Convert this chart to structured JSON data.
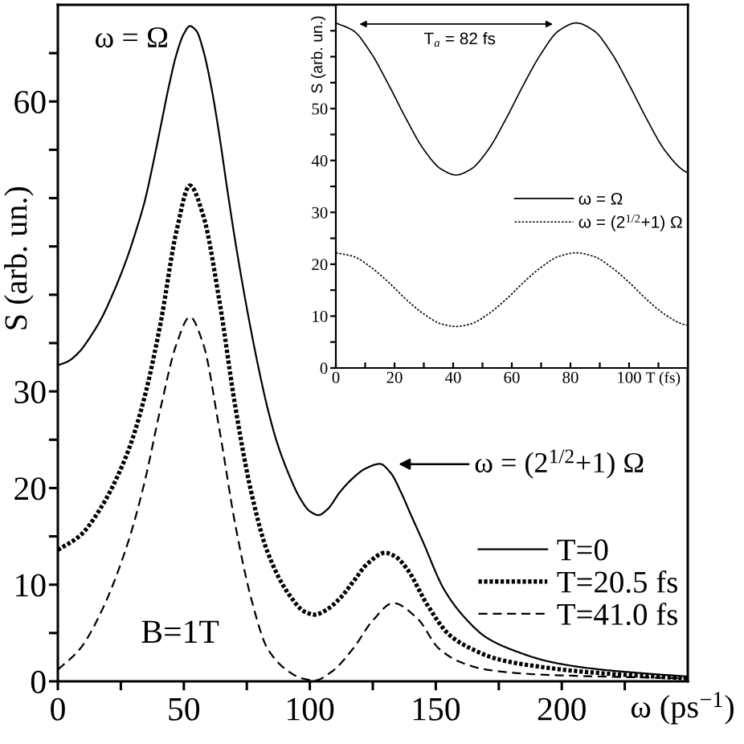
{
  "chart_data": [
    {
      "type": "line",
      "xlabel": "ω (ps$^{−1}$)",
      "ylabel": "S (arb. un.)",
      "xlim": [
        0,
        250
      ],
      "ylim": [
        0,
        70
      ],
      "xticks": [
        0,
        {
          "value": 25,
          "label": null
        },
        50,
        {
          "value": 75,
          "label": null
        },
        100,
        {
          "value": 125,
          "label": null
        },
        150,
        {
          "value": 175,
          "label": null
        },
        200,
        {
          "value": 225,
          "label": null
        }
      ],
      "yticks": [
        0,
        {
          "value": 5,
          "label": null
        },
        10,
        {
          "value": 15,
          "label": null
        },
        20,
        {
          "value": 25,
          "label": null
        },
        30,
        {
          "value": 35,
          "label": null
        },
        {
          "value": 40,
          "label": null
        },
        {
          "value": 45,
          "label": null
        },
        {
          "value": 50,
          "label": null
        },
        {
          "value": 55,
          "label": null
        },
        60,
        {
          "value": 65,
          "label": null
        }
      ],
      "legend": "bottom right",
      "annotations": [
        "ω = Ω",
        "ω = (2$^{1/2}$+1) Ω",
        "B=1T"
      ],
      "series": [
        {
          "name": "T=0",
          "color": "#000000",
          "line_style": "solid",
          "x": [
            0,
            4,
            8.9,
            12,
            17.4,
            22,
            25,
            28,
            31,
            34.4,
            37.5,
            40.8,
            44,
            47.1,
            50,
            52.4,
            55,
            57.7,
            60.9,
            64.1,
            67.3,
            70.5,
            73.7,
            76.9,
            80,
            83.2,
            87,
            91.7,
            96,
            100,
            103.4,
            107,
            112,
            117,
            122,
            127.8,
            132,
            136.3,
            140,
            144.8,
            153.3,
            161.8,
            170.3,
            180.9,
            195.7,
            212.7,
            234,
            250
          ],
          "values": [
            32.7,
            33.1,
            34.2,
            35.3,
            37.6,
            40.2,
            42.1,
            44.2,
            46.6,
            49.6,
            53.2,
            57.4,
            61.5,
            64.9,
            67.0,
            67.8,
            67.3,
            65.3,
            61.5,
            56.5,
            50.8,
            45.4,
            40.5,
            36.0,
            32.0,
            28.3,
            24.7,
            21.4,
            19.0,
            17.6,
            17.2,
            17.8,
            19.6,
            21.0,
            22.0,
            22.5,
            21.6,
            19.5,
            17.3,
            14.5,
            9.5,
            6.5,
            4.5,
            3.2,
            2.0,
            1.3,
            0.8,
            0.5
          ]
        },
        {
          "name": "T=20.5 fs",
          "color": "#000000",
          "line_style": "dotted",
          "x": [
            0,
            8.9,
            17.4,
            28,
            34.4,
            40.8,
            47.1,
            52.4,
            57.7,
            64.1,
            70.5,
            76.9,
            83.2,
            91.7,
            98,
            102,
            106,
            112,
            117.2,
            123,
            129.9,
            134,
            138.4,
            146.9,
            155.4,
            163.9,
            174.5,
            191.5,
            212.7,
            250
          ],
          "values": [
            13.6,
            15.1,
            18.1,
            23.9,
            29.4,
            37.1,
            46.6,
            51.3,
            48.2,
            39.4,
            28.3,
            19.4,
            13.4,
            9.0,
            7.2,
            6.9,
            7.3,
            8.6,
            10.3,
            12.2,
            13.3,
            12.9,
            11.7,
            7.8,
            4.8,
            3.4,
            2.3,
            1.5,
            0.9,
            0.3
          ]
        },
        {
          "name": "T=41.0 fs",
          "color": "#000000",
          "line_style": "dashed",
          "x": [
            0,
            8.9,
            17.4,
            28,
            34.4,
            40.8,
            47.1,
            52.4,
            57.7,
            64.1,
            70.5,
            76.9,
            83.2,
            91.7,
            97,
            102,
            108.7,
            117.2,
            125,
            133.1,
            142.7,
            151.2,
            159.7,
            170.3,
            191.5,
            250
          ],
          "values": [
            1.2,
            3.4,
            7.3,
            14.5,
            20.6,
            28.3,
            34.9,
            37.7,
            34.9,
            26.1,
            16.1,
            8.4,
            3.4,
            1.0,
            0.3,
            0.1,
            1.0,
            3.4,
            6.3,
            8.1,
            6.5,
            3.4,
            2.0,
            1.2,
            0.7,
            0.3
          ]
        }
      ]
    },
    {
      "type": "line",
      "xlabel": "T (fs)",
      "ylabel": "S (arb. un.)",
      "xlim": [
        0,
        120
      ],
      "ylim": [
        0,
        70
      ],
      "xticks": [
        0,
        {
          "value": 10,
          "label": null
        },
        20,
        {
          "value": 30,
          "label": null
        },
        40,
        {
          "value": 50,
          "label": null
        },
        60,
        {
          "value": 70,
          "label": null
        },
        80,
        {
          "value": 90,
          "label": null
        },
        100,
        {
          "value": 110,
          "label": null
        }
      ],
      "yticks": [
        0,
        {
          "value": 5,
          "label": null
        },
        10,
        {
          "value": 15,
          "label": null
        },
        20,
        {
          "value": 25,
          "label": null
        },
        30,
        {
          "value": 35,
          "label": null
        },
        40,
        {
          "value": 45,
          "label": null
        },
        50,
        {
          "value": 55,
          "label": null
        },
        {
          "value": 60,
          "label": null
        },
        {
          "value": 65,
          "label": null
        }
      ],
      "legend": "right",
      "annotations": [
        "T$_{a}$ = 82 fs"
      ],
      "series": [
        {
          "name": "ω = Ω",
          "color": "#000000",
          "line_style": "solid",
          "x": [
            0,
            6,
            12,
            18,
            24,
            30,
            36,
            41,
            46,
            52,
            58,
            64,
            70,
            76,
            82,
            88,
            94,
            100,
            106,
            112,
            118,
            120
          ],
          "values": [
            66.5,
            65.0,
            60.7,
            54.6,
            48.0,
            42.1,
            38.3,
            37.2,
            38.3,
            42.1,
            48.0,
            54.6,
            60.6,
            65.0,
            66.5,
            65.0,
            60.7,
            54.6,
            48.0,
            42.1,
            38.3,
            37.6
          ]
        },
        {
          "name": "ω = (2$^{1/2}$+1) Ω",
          "color": "#000000",
          "line_style": "dashed",
          "x": [
            0,
            6,
            12,
            18,
            24,
            30,
            36,
            41,
            46,
            52,
            58,
            64,
            70,
            76,
            82,
            88,
            94,
            100,
            106,
            112,
            118,
            120
          ],
          "values": [
            22.2,
            21.5,
            19.4,
            16.5,
            13.2,
            10.4,
            8.5,
            8.0,
            8.5,
            10.4,
            13.2,
            16.5,
            19.4,
            21.5,
            22.2,
            21.5,
            19.4,
            16.5,
            13.2,
            10.4,
            8.5,
            8.2
          ]
        }
      ]
    }
  ]
}
